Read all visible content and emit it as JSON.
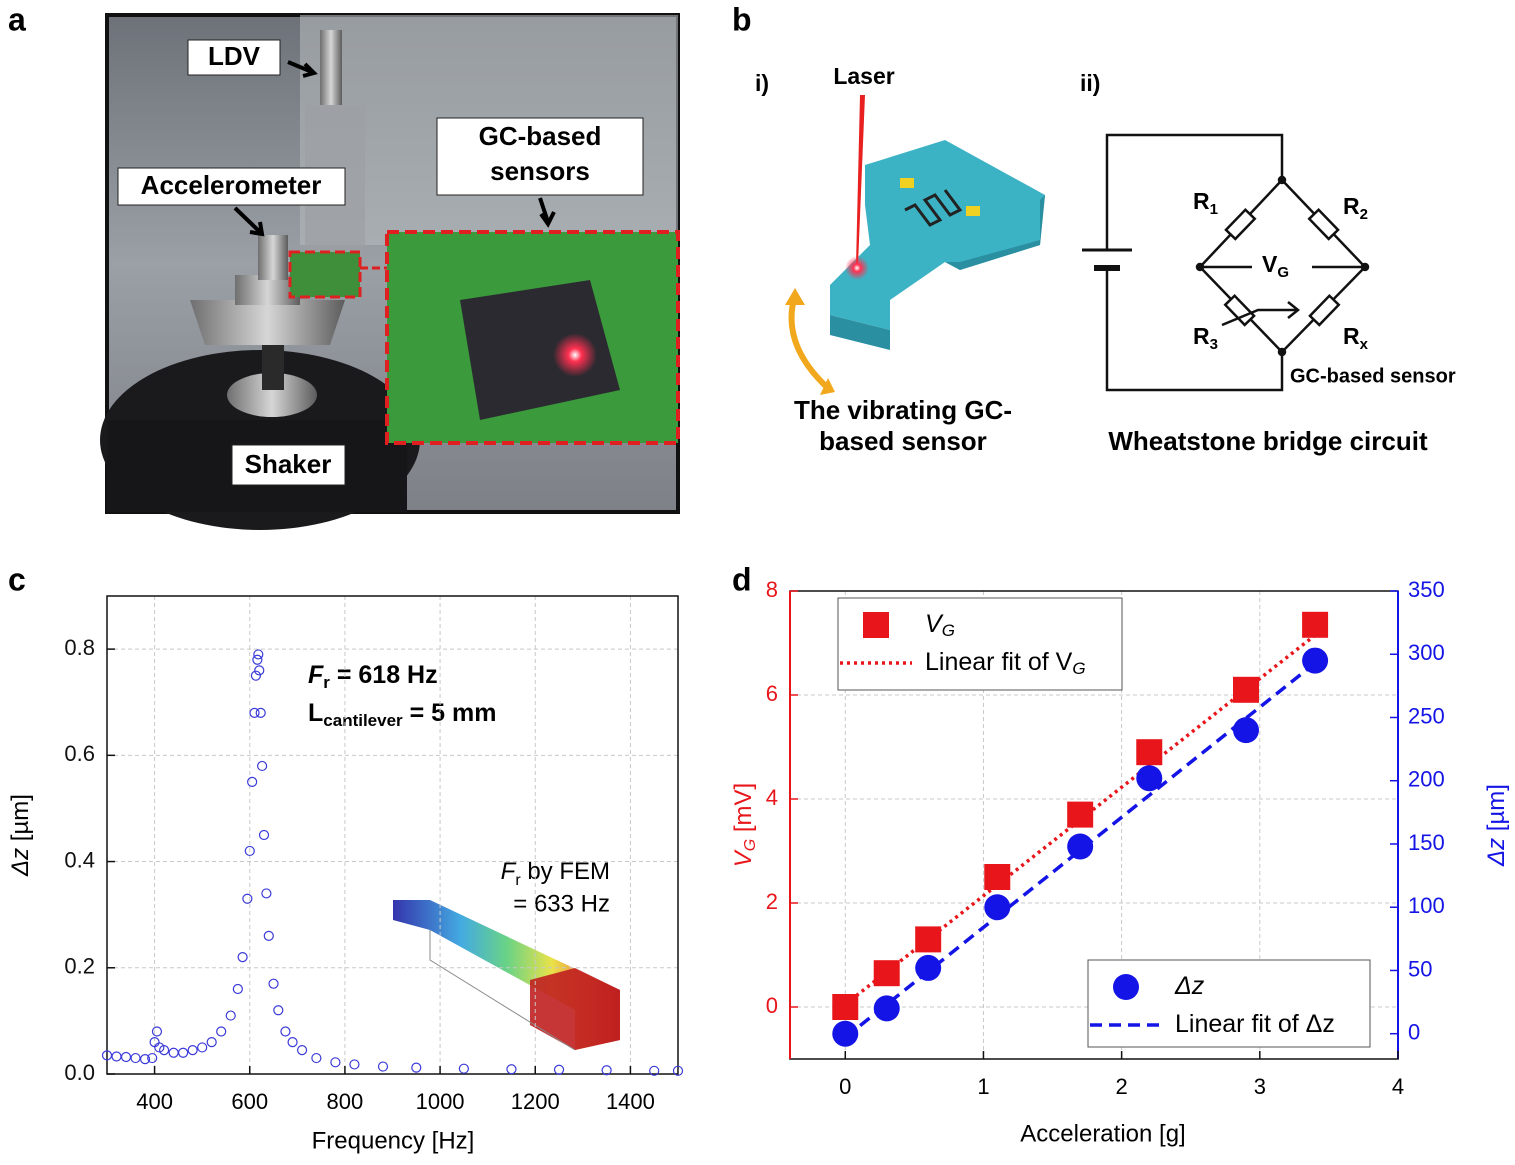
{
  "panel_labels": [
    "a",
    "b",
    "c",
    "d"
  ],
  "photo": {
    "labels": [
      "LDV",
      "Accelerometer",
      "GC-based",
      "sensors",
      "Shaker"
    ]
  },
  "diagram": {
    "part_i": "i)",
    "laser": "Laser",
    "caption_i": [
      "The vibrating GC-",
      "based sensor"
    ],
    "part_ii": "ii)",
    "resistors": [
      {
        "main": "R",
        "sub": "1"
      },
      {
        "main": "R",
        "sub": "2"
      },
      {
        "main": "R",
        "sub": "3"
      },
      {
        "main": "R",
        "sub": "x"
      }
    ],
    "vg": {
      "main": "V",
      "sub": "G"
    },
    "sensor": "GC-based sensor",
    "caption_ii": "Wheatstone bridge circuit"
  },
  "chart_data": [
    {
      "type": "scatter",
      "xlabel": "Frequency [Hz]",
      "ylabel": "Δz",
      "ylabel_rest": " [µm]",
      "annotations": [
        {
          "text": "F",
          "sub": "r",
          "rest": " = 618 Hz"
        },
        {
          "text": "L",
          "sub": "cantilever",
          "rest": " = 5 mm"
        },
        {
          "text": "F",
          "sub": "r",
          "rest": " by FEM"
        },
        {
          "text": "= 633 Hz"
        }
      ],
      "xlim": [
        300,
        1500
      ],
      "xticks": [
        400,
        600,
        800,
        1000,
        1200,
        1400
      ],
      "ylim": [
        0,
        0.9
      ],
      "yticks": [
        {
          "value": 0,
          "label": "0.0"
        },
        0.2,
        0.4,
        0.6,
        0.8
      ],
      "grid": true,
      "series": [
        {
          "color": "#3a3ad8",
          "marker": "open-circle",
          "x": [
            300,
            320,
            340,
            360,
            380,
            395,
            400,
            405,
            410,
            420,
            440,
            460,
            480,
            500,
            520,
            540,
            560,
            575,
            585,
            595,
            600,
            605,
            610,
            613,
            616,
            618,
            620,
            623,
            626,
            630,
            635,
            640,
            650,
            660,
            675,
            690,
            710,
            740,
            780,
            820,
            880,
            950,
            1050,
            1150,
            1250,
            1350,
            1450,
            1500
          ],
          "values": [
            0.035,
            0.033,
            0.032,
            0.03,
            0.028,
            0.03,
            0.06,
            0.08,
            0.05,
            0.045,
            0.04,
            0.04,
            0.045,
            0.05,
            0.06,
            0.08,
            0.11,
            0.16,
            0.22,
            0.33,
            0.42,
            0.55,
            0.68,
            0.75,
            0.78,
            0.79,
            0.76,
            0.68,
            0.58,
            0.45,
            0.34,
            0.26,
            0.17,
            0.12,
            0.08,
            0.06,
            0.045,
            0.03,
            0.022,
            0.018,
            0.014,
            0.012,
            0.01,
            0.009,
            0.008,
            0.007,
            0.006,
            0.006
          ]
        }
      ]
    },
    {
      "type": "scatter",
      "xlabel": "Acceleration [g]",
      "ylabel": "V",
      "ylabel_sub": "G",
      "ylabel_rest": " [mV]",
      "y2label": "Δz",
      "y2label_rest": " [µm]",
      "xlim": [
        -0.4,
        4
      ],
      "xticks": [
        0,
        1,
        2,
        3,
        4
      ],
      "ylim": [
        -1,
        8
      ],
      "yticks": [
        0,
        2,
        4,
        6,
        8
      ],
      "y2lim": [
        -20,
        350
      ],
      "y2ticks": [
        0,
        50,
        100,
        150,
        200,
        250,
        300,
        350
      ],
      "ycolor": "#e8161b",
      "y2color": "#1414e6",
      "grid": true,
      "series": [
        {
          "name": "V",
          "name_sub": "G",
          "color": "#e8161b",
          "marker": "square",
          "legend": "upper left",
          "x": [
            0,
            0.3,
            0.6,
            1.1,
            1.7,
            2.2,
            2.9,
            3.4
          ],
          "values": [
            0,
            0.65,
            1.3,
            2.5,
            3.7,
            4.9,
            6.1,
            7.35
          ]
        },
        {
          "name": "Linear fit of V",
          "name_sub": "G",
          "color": "#e8161b",
          "line": "dotted",
          "legend": "upper left",
          "x": [
            0,
            3.4
          ],
          "values": [
            0.05,
            7.15
          ]
        },
        {
          "name": "Δz",
          "color": "#1414e6",
          "marker": "circle",
          "axis": "y2",
          "legend": "lower right",
          "x": [
            0,
            0.3,
            0.6,
            1.1,
            1.7,
            2.2,
            2.9,
            3.4
          ],
          "values": [
            0,
            20,
            52,
            100,
            148,
            202,
            240,
            295
          ]
        },
        {
          "name": "Linear fit of Δz",
          "color": "#1414e6",
          "line": "dashed",
          "axis": "y2",
          "legend": "lower right",
          "x": [
            0,
            3.4
          ],
          "values": [
            -3,
            293
          ]
        }
      ]
    }
  ]
}
